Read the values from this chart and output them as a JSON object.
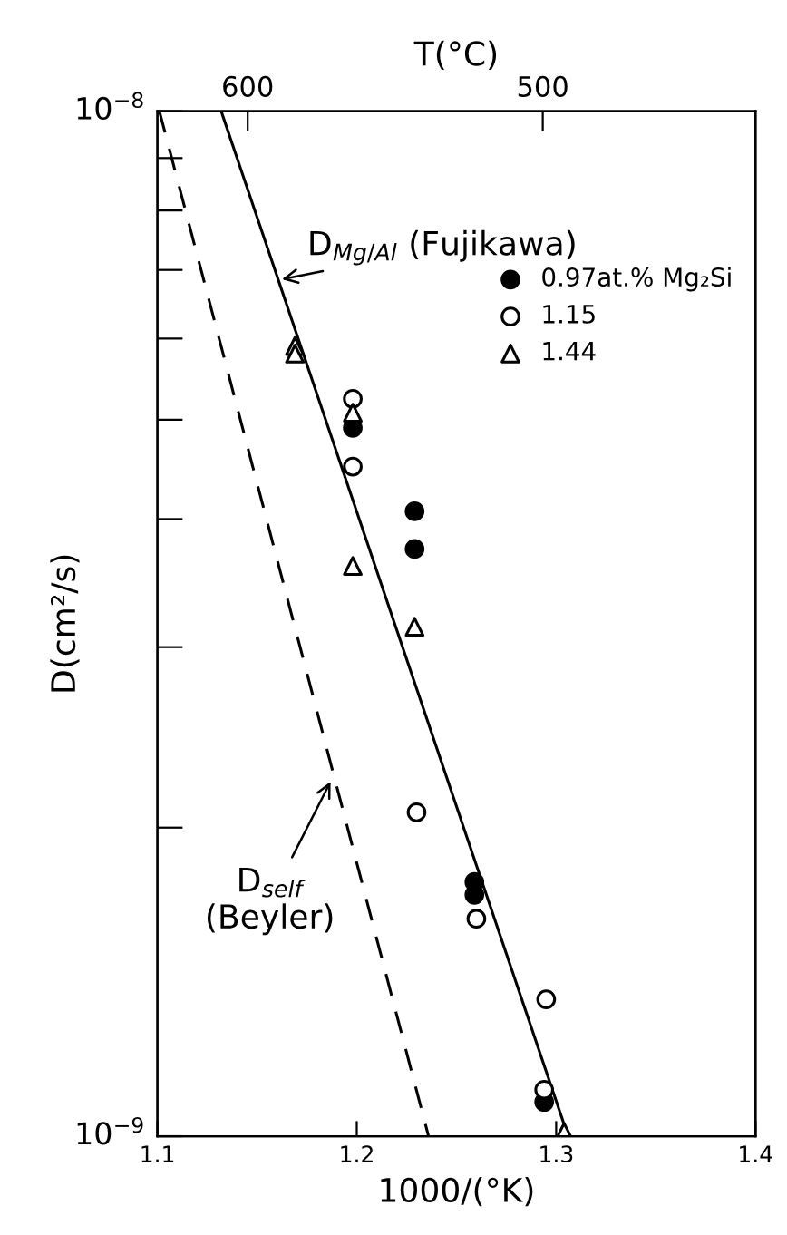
{
  "chart_data": {
    "type": "scatter",
    "xlabel": "1000/(°K)",
    "ylabel": "D(cm²/s)",
    "x2label": "T(°C)",
    "log": "y",
    "xlim": [
      1.1,
      1.4
    ],
    "xticks": [
      1.1,
      1.2,
      1.3,
      1.4
    ],
    "x2lim": [
      630.6,
      427.9
    ],
    "x2ticks": [
      600,
      500
    ],
    "ylim": [
      1e-09,
      1e-08
    ],
    "yticks": [
      {
        "value": 1e-09,
        "label": "10$^{−9}$"
      },
      {
        "value": 2e-09,
        "label": null
      },
      {
        "value": 3e-09,
        "label": null
      },
      {
        "value": 4e-09,
        "label": null
      },
      {
        "value": 5e-09,
        "label": null
      },
      {
        "value": 6e-09,
        "label": null
      },
      {
        "value": 7e-09,
        "label": null
      },
      {
        "value": 8e-09,
        "label": null
      },
      {
        "value": 9e-09,
        "label": null
      },
      {
        "value": 1e-08,
        "label": "10$^{−8}$"
      }
    ],
    "grid": false,
    "legend": "top right",
    "series": [
      {
        "name": "0.97at.% Mg₂Si",
        "marker": "circle",
        "color": "#000000",
        "x": [
          1.198,
          1.229,
          1.229,
          1.259,
          1.259,
          1.294
        ],
        "values": [
          4.91e-09,
          4.07e-09,
          3.74e-09,
          1.77e-09,
          1.72e-09,
          1.08e-09
        ]
      },
      {
        "name": "1.15",
        "marker": "circle",
        "color": "#ffffff",
        "x": [
          1.198,
          1.198,
          1.23,
          1.26,
          1.295,
          1.294
        ],
        "values": [
          5.24e-09,
          4.5e-09,
          2.07e-09,
          1.63e-09,
          1.36e-09,
          1.11e-09
        ]
      },
      {
        "name": "1.44",
        "marker": "triangle",
        "color": "#ffffff",
        "x": [
          1.169,
          1.169,
          1.198,
          1.198,
          1.229,
          1.304
        ],
        "values": [
          5.9e-09,
          5.8e-09,
          5.08e-09,
          3.6e-09,
          3.14e-09,
          1.01e-09
        ]
      },
      {
        "type": "line",
        "line_style": "solid",
        "color": "#000000",
        "x": [
          1.132,
          1.306
        ],
        "values": [
          1e-08,
          1e-09
        ]
      },
      {
        "type": "line",
        "line_style": "dashed",
        "color": "#000000",
        "x": [
          1.101,
          1.236
        ],
        "values": [
          1e-08,
          1e-09
        ]
      }
    ],
    "annotations": [
      {
        "text": "D$_{Mg/Al}$ (Fujikawa)",
        "x": 1.16,
        "y": 6.84e-09
      },
      {
        "text": "D$_{self}$\n(Beyler)",
        "x": 1.188,
        "y": 2.24e-09
      }
    ]
  }
}
